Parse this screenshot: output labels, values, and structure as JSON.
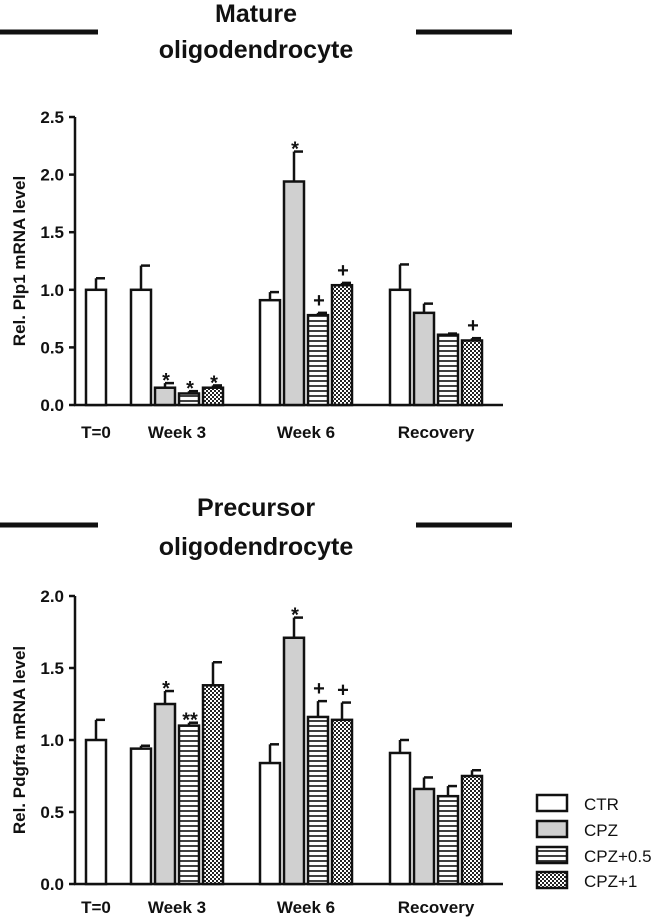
{
  "legend": [
    {
      "name": "CTR",
      "pattern": "open"
    },
    {
      "name": "CPZ",
      "pattern": "gray"
    },
    {
      "name": "CPZ+0.5",
      "pattern": "hlines"
    },
    {
      "name": "CPZ+1",
      "pattern": "checker"
    }
  ],
  "colors": {
    "ink": "#111111",
    "gray_fill": "#d0d0d0"
  },
  "chart_data": [
    {
      "type": "bar",
      "title_lines": [
        "Mature",
        "oligodendrocyte"
      ],
      "ylabel": "Rel. Plp1 mRNA level",
      "ylim": [
        0,
        2.5
      ],
      "yticks": [
        "0.0",
        "0.5",
        "1.0",
        "1.5",
        "2.0",
        "2.5"
      ],
      "categories": [
        "T=0",
        "Week 3",
        "Week 6",
        "Recovery"
      ],
      "series": [
        {
          "name": "CTR",
          "values": [
            1.0,
            1.0,
            0.91,
            1.0
          ],
          "errors": [
            0.1,
            0.21,
            0.07,
            0.22
          ],
          "annotations": [
            "",
            "",
            "",
            ""
          ]
        },
        {
          "name": "CPZ",
          "values": [
            null,
            0.15,
            1.94,
            0.8
          ],
          "errors": [
            null,
            0.04,
            0.26,
            0.08
          ],
          "annotations": [
            "",
            "*",
            "*",
            ""
          ]
        },
        {
          "name": "CPZ+0.5",
          "values": [
            null,
            0.1,
            0.78,
            0.61
          ],
          "errors": [
            null,
            0.02,
            0.02,
            0.01
          ],
          "annotations": [
            "",
            "*",
            "+",
            ""
          ]
        },
        {
          "name": "CPZ+1",
          "values": [
            null,
            0.15,
            1.04,
            0.56
          ],
          "errors": [
            null,
            0.02,
            0.02,
            0.02
          ],
          "annotations": [
            "",
            "*",
            "+",
            "+"
          ]
        }
      ]
    },
    {
      "type": "bar",
      "title_lines": [
        "Precursor",
        "oligodendrocyte"
      ],
      "ylabel": "Rel. Pdgfra mRNA level",
      "ylim": [
        0,
        2.0
      ],
      "yticks": [
        "0.0",
        "0.5",
        "1.0",
        "1.5",
        "2.0"
      ],
      "categories": [
        "T=0",
        "Week 3",
        "Week 6",
        "Recovery"
      ],
      "series": [
        {
          "name": "CTR",
          "values": [
            1.0,
            0.94,
            0.84,
            0.91
          ],
          "errors": [
            0.14,
            0.02,
            0.13,
            0.09
          ],
          "annotations": [
            "",
            "",
            "",
            ""
          ]
        },
        {
          "name": "CPZ",
          "values": [
            null,
            1.25,
            1.71,
            0.66
          ],
          "errors": [
            null,
            0.09,
            0.14,
            0.08
          ],
          "annotations": [
            "",
            "*",
            "*",
            ""
          ]
        },
        {
          "name": "CPZ+0.5",
          "values": [
            null,
            1.1,
            1.16,
            0.61
          ],
          "errors": [
            null,
            0.02,
            0.11,
            0.07
          ],
          "annotations": [
            "",
            "**",
            "+",
            ""
          ]
        },
        {
          "name": "CPZ+1",
          "values": [
            null,
            1.38,
            1.14,
            0.75
          ],
          "errors": [
            null,
            0.16,
            0.12,
            0.04
          ],
          "annotations": [
            "",
            "",
            "+",
            ""
          ]
        }
      ]
    }
  ]
}
